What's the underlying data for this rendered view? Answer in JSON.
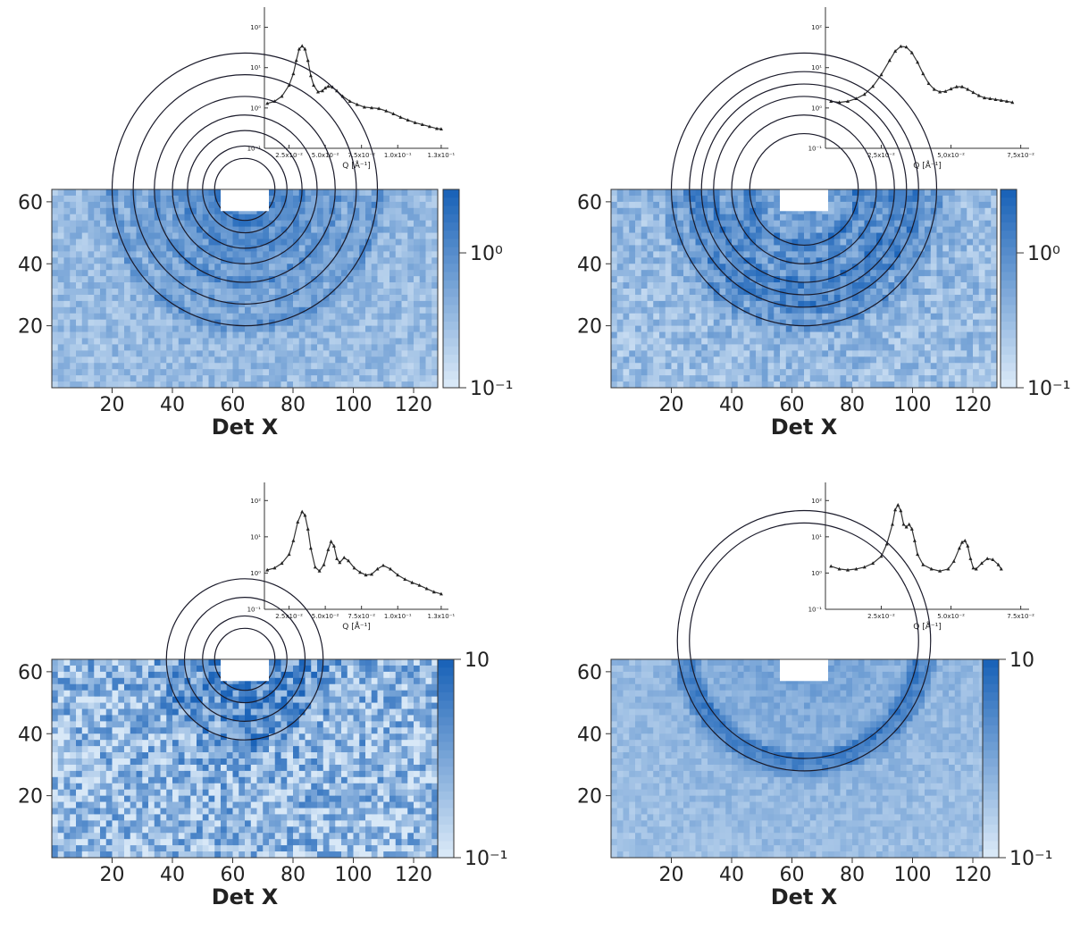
{
  "chart_data": [
    {
      "type": "line",
      "panel": "top-left",
      "xlabel": "Q [Å⁻¹]",
      "xticks": [
        "2.5x10⁻²",
        "5.0x10⁻²",
        "7.5x10⁻²",
        "1.0x10⁻¹",
        "1.3x10⁻¹"
      ],
      "xtick_values": [
        0.025,
        0.05,
        0.075,
        0.1,
        0.13
      ],
      "yticks": [
        "10⁻¹",
        "10⁰",
        "10¹",
        "10²"
      ],
      "y_scale": "log",
      "xlim": [
        0.008,
        0.135
      ],
      "ylim": [
        0.1,
        500
      ],
      "x": [
        0.01,
        0.015,
        0.02,
        0.025,
        0.028,
        0.03,
        0.032,
        0.034,
        0.036,
        0.038,
        0.04,
        0.042,
        0.045,
        0.048,
        0.05,
        0.052,
        0.055,
        0.058,
        0.062,
        0.067,
        0.072,
        0.077,
        0.082,
        0.087,
        0.092,
        0.097,
        0.102,
        0.107,
        0.112,
        0.117,
        0.122,
        0.127,
        0.13
      ],
      "y": [
        1.5,
        1.7,
        2.3,
        4.5,
        9,
        20,
        40,
        48,
        40,
        20,
        8,
        4.5,
        3.0,
        3.2,
        3.8,
        4.2,
        4.0,
        3.2,
        2.3,
        1.7,
        1.4,
        1.2,
        1.15,
        1.1,
        0.95,
        0.8,
        0.65,
        0.55,
        0.47,
        0.42,
        0.37,
        0.33,
        0.32
      ]
    },
    {
      "type": "line",
      "panel": "top-right",
      "xlabel": "Q [Å⁻¹]",
      "xticks": [
        "2,5x10⁻²",
        "5,0x10⁻²",
        "7,5x10⁻²"
      ],
      "xtick_values": [
        0.025,
        0.05,
        0.075
      ],
      "yticks": [
        "10⁻¹",
        "10⁰",
        "10¹",
        "10²"
      ],
      "y_scale": "log",
      "xlim": [
        0.005,
        0.078
      ],
      "ylim": [
        0.1,
        500
      ],
      "x": [
        0.007,
        0.01,
        0.013,
        0.016,
        0.019,
        0.022,
        0.025,
        0.028,
        0.03,
        0.032,
        0.034,
        0.036,
        0.038,
        0.04,
        0.042,
        0.044,
        0.046,
        0.048,
        0.05,
        0.052,
        0.054,
        0.056,
        0.058,
        0.06,
        0.062,
        0.064,
        0.066,
        0.068,
        0.07,
        0.072
      ],
      "y": [
        1.7,
        1.6,
        1.7,
        2.0,
        2.6,
        4.2,
        8.5,
        20,
        35,
        47,
        45,
        32,
        18,
        9,
        5,
        3.5,
        3.0,
        3.1,
        3.6,
        4.1,
        4.1,
        3.5,
        2.9,
        2.4,
        2.1,
        2.0,
        1.9,
        1.8,
        1.7,
        1.6
      ]
    },
    {
      "type": "line",
      "panel": "bottom-left",
      "xlabel": "Q [Å⁻¹]",
      "xticks": [
        "2.5x10⁻²",
        "5.0x10⁻²",
        "7.5x10⁻²",
        "1.0x10⁻¹",
        "1.3x10⁻¹"
      ],
      "xtick_values": [
        0.025,
        0.05,
        0.075,
        0.1,
        0.13
      ],
      "yticks": [
        "10⁻¹",
        "10⁰",
        "10¹",
        "10²"
      ],
      "y_scale": "log",
      "xlim": [
        0.008,
        0.135
      ],
      "ylim": [
        0.1,
        500
      ],
      "x": [
        0.01,
        0.015,
        0.02,
        0.025,
        0.028,
        0.031,
        0.034,
        0.036,
        0.038,
        0.04,
        0.043,
        0.046,
        0.049,
        0.052,
        0.054,
        0.056,
        0.058,
        0.06,
        0.063,
        0.066,
        0.07,
        0.074,
        0.078,
        0.082,
        0.086,
        0.09,
        0.095,
        0.1,
        0.105,
        0.11,
        0.115,
        0.12,
        0.125,
        0.13
      ],
      "y": [
        1.4,
        1.6,
        2.2,
        4.0,
        10,
        35,
        70,
        55,
        22,
        6,
        1.7,
        1.3,
        2.0,
        5.5,
        9.5,
        7.0,
        3.0,
        2.3,
        3.2,
        2.6,
        1.6,
        1.2,
        1.0,
        1.05,
        1.5,
        1.9,
        1.5,
        1.0,
        0.75,
        0.6,
        0.5,
        0.4,
        0.32,
        0.28
      ]
    },
    {
      "type": "line",
      "panel": "bottom-right",
      "xlabel": "Q [Å⁻¹]",
      "xticks": [
        "2.5x10⁻²",
        "5.0x10⁻²",
        "7.5x10⁻²"
      ],
      "xtick_values": [
        0.025,
        0.05,
        0.075
      ],
      "yticks": [
        "10⁻¹",
        "10⁰",
        "10¹",
        "10²"
      ],
      "y_scale": "log",
      "xlim": [
        0.005,
        0.078
      ],
      "ylim": [
        0.1,
        500
      ],
      "x": [
        0.007,
        0.01,
        0.013,
        0.016,
        0.019,
        0.022,
        0.025,
        0.027,
        0.029,
        0.03,
        0.031,
        0.032,
        0.033,
        0.034,
        0.035,
        0.036,
        0.037,
        0.038,
        0.04,
        0.043,
        0.046,
        0.049,
        0.051,
        0.053,
        0.054,
        0.055,
        0.056,
        0.057,
        0.058,
        0.059,
        0.061,
        0.063,
        0.065,
        0.067,
        0.068
      ],
      "y": [
        1.8,
        1.5,
        1.4,
        1.5,
        1.7,
        2.2,
        3.5,
        8,
        30,
        80,
        110,
        75,
        30,
        25,
        30,
        22,
        10,
        4,
        2,
        1.5,
        1.3,
        1.5,
        2.5,
        6,
        9,
        10,
        7,
        3,
        1.6,
        1.5,
        2.2,
        3.0,
        2.8,
        2.0,
        1.5
      ]
    },
    {
      "type": "heatmap",
      "panel": "top-left",
      "xlabel": "Det X",
      "xticks": [
        "20",
        "40",
        "60",
        "80",
        "100",
        "120"
      ],
      "yticks": [
        "20",
        "40",
        "60"
      ],
      "xlim": [
        0,
        128
      ],
      "ylim": [
        0,
        64
      ],
      "colorbar": {
        "ticks": [
          "10⁰",
          "10⁻¹"
        ],
        "scale": "log",
        "colormap": "white-to-blue"
      },
      "ring_center": [
        64,
        64
      ],
      "ring_radii": [
        10,
        14,
        19,
        24,
        30,
        37,
        44
      ],
      "ring_contrast": 0.55,
      "noise": 0.18,
      "color_max": "#1b63b8",
      "color_min": "#d8e8f7"
    },
    {
      "type": "heatmap",
      "panel": "top-right",
      "xlabel": "Det X",
      "xticks": [
        "20",
        "40",
        "60",
        "80",
        "100",
        "120"
      ],
      "yticks": [
        "20",
        "40",
        "60"
      ],
      "xlim": [
        0,
        128
      ],
      "ylim": [
        0,
        64
      ],
      "colorbar": {
        "ticks": [
          "10⁰",
          "10⁻¹"
        ],
        "scale": "log",
        "colormap": "white-to-blue"
      },
      "ring_center": [
        64,
        64
      ],
      "ring_radii": [
        18,
        24,
        30,
        34,
        38,
        44
      ],
      "ring_contrast": 0.75,
      "noise": 0.22,
      "color_max": "#1b63b8",
      "color_min": "#d8e8f7"
    },
    {
      "type": "heatmap",
      "panel": "bottom-left",
      "xlabel": "Det X",
      "xticks": [
        "20",
        "40",
        "60",
        "80",
        "100",
        "120"
      ],
      "yticks": [
        "20",
        "40",
        "60"
      ],
      "xlim": [
        0,
        128
      ],
      "ylim": [
        0,
        64
      ],
      "colorbar": {
        "ticks": [
          "10",
          "10⁻¹"
        ],
        "scale": "log",
        "colormap": "white-to-blue"
      },
      "ring_center": [
        64,
        64
      ],
      "ring_radii": [
        10,
        14,
        20,
        26
      ],
      "ring_contrast": 0.6,
      "noise": 0.45,
      "color_max": "#1b63b8",
      "color_min": "#d8e8f7"
    },
    {
      "type": "heatmap",
      "panel": "bottom-right",
      "xlabel": "Det X",
      "xticks": [
        "20",
        "40",
        "60",
        "80",
        "100",
        "120"
      ],
      "yticks": [
        "20",
        "40",
        "60"
      ],
      "xlim": [
        0,
        128
      ],
      "ylim": [
        0,
        64
      ],
      "colorbar": {
        "ticks": [
          "10",
          "10⁻¹"
        ],
        "scale": "log",
        "colormap": "white-to-blue"
      },
      "ring_center": [
        64,
        70
      ],
      "ring_radii": [
        38,
        42
      ],
      "ring_contrast": 0.9,
      "noise": 0.12,
      "color_max": "#1b63b8",
      "color_min": "#d8e8f7"
    }
  ]
}
